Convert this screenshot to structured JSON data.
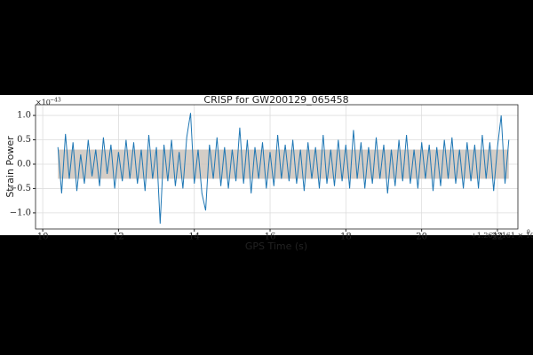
{
  "chart_data": {
    "type": "line",
    "title": "CRISP for GW200129_065458",
    "xlabel": "GPS Time (s)",
    "ylabel": "Strain Power",
    "y_offset": {
      "base": "×10",
      "exponent": "−43"
    },
    "x_offset": {
      "base": "+1.2643161 × 10",
      "exponent": "9"
    },
    "xlim": [
      9.81,
      22.54
    ],
    "ylim": [
      -1.33,
      1.22
    ],
    "xticks": [
      10,
      12,
      14,
      16,
      18,
      20,
      22
    ],
    "yticks": [
      {
        "value": -1.0,
        "label": "−1.0"
      },
      {
        "value": -0.5,
        "label": "−0.5"
      },
      {
        "value": 0,
        "label": "0.0"
      },
      0.5,
      {
        "value": 1.0,
        "label": "1.0"
      }
    ],
    "grid": true,
    "band": {
      "lower": -0.3,
      "upper": 0.3,
      "color": "#c9c0b8"
    },
    "series": [
      {
        "name": "Strain Power",
        "color": "#1f77b4",
        "x": [
          10.4,
          10.5,
          10.6,
          10.7,
          10.8,
          10.9,
          11.0,
          11.1,
          11.2,
          11.3,
          11.4,
          11.5,
          11.6,
          11.7,
          11.8,
          11.9,
          12.0,
          12.1,
          12.2,
          12.3,
          12.4,
          12.5,
          12.6,
          12.7,
          12.8,
          12.9,
          13.0,
          13.1,
          13.2,
          13.3,
          13.4,
          13.5,
          13.6,
          13.7,
          13.8,
          13.9,
          14.0,
          14.1,
          14.2,
          14.3,
          14.4,
          14.5,
          14.6,
          14.7,
          14.8,
          14.9,
          15.0,
          15.1,
          15.2,
          15.3,
          15.4,
          15.5,
          15.6,
          15.7,
          15.8,
          15.9,
          16.0,
          16.1,
          16.2,
          16.3,
          16.4,
          16.5,
          16.6,
          16.7,
          16.8,
          16.9,
          17.0,
          17.1,
          17.2,
          17.3,
          17.4,
          17.5,
          17.6,
          17.7,
          17.8,
          17.9,
          18.0,
          18.1,
          18.2,
          18.3,
          18.4,
          18.5,
          18.6,
          18.7,
          18.8,
          18.9,
          19.0,
          19.1,
          19.2,
          19.3,
          19.4,
          19.5,
          19.6,
          19.7,
          19.8,
          19.9,
          20.0,
          20.1,
          20.2,
          20.3,
          20.4,
          20.5,
          20.6,
          20.7,
          20.8,
          20.9,
          21.0,
          21.1,
          21.2,
          21.3,
          21.4,
          21.5,
          21.6,
          21.7,
          21.8,
          21.9,
          22.0,
          22.1,
          22.2,
          22.3
        ],
        "values": [
          0.35,
          -0.6,
          0.62,
          -0.3,
          0.45,
          -0.55,
          0.2,
          -0.4,
          0.5,
          -0.25,
          0.3,
          -0.45,
          0.55,
          -0.2,
          0.4,
          -0.5,
          0.25,
          -0.35,
          0.5,
          -0.3,
          0.45,
          -0.4,
          0.3,
          -0.55,
          0.6,
          -0.3,
          0.35,
          -1.22,
          0.4,
          -0.35,
          0.5,
          -0.45,
          0.25,
          -0.5,
          0.55,
          1.05,
          -0.4,
          0.3,
          -0.6,
          -0.95,
          0.4,
          -0.3,
          0.55,
          -0.45,
          0.35,
          -0.5,
          0.3,
          -0.35,
          0.75,
          -0.4,
          0.5,
          -0.6,
          0.35,
          -0.3,
          0.45,
          -0.5,
          0.25,
          -0.45,
          0.6,
          -0.3,
          0.4,
          -0.35,
          0.5,
          -0.4,
          0.3,
          -0.55,
          0.45,
          -0.3,
          0.35,
          -0.5,
          0.6,
          -0.4,
          0.3,
          -0.45,
          0.5,
          -0.35,
          0.4,
          -0.5,
          0.7,
          -0.3,
          0.45,
          -0.5,
          0.35,
          -0.4,
          0.55,
          -0.3,
          0.4,
          -0.6,
          0.3,
          -0.45,
          0.5,
          -0.35,
          0.6,
          -0.4,
          0.3,
          -0.5,
          0.45,
          -0.3,
          0.4,
          -0.55,
          0.35,
          -0.45,
          0.5,
          -0.3,
          0.55,
          -0.4,
          0.3,
          -0.5,
          0.45,
          -0.35,
          0.4,
          -0.5,
          0.6,
          -0.3,
          0.45,
          -0.55,
          0.35,
          1.0,
          -0.4,
          0.5
        ]
      }
    ]
  }
}
